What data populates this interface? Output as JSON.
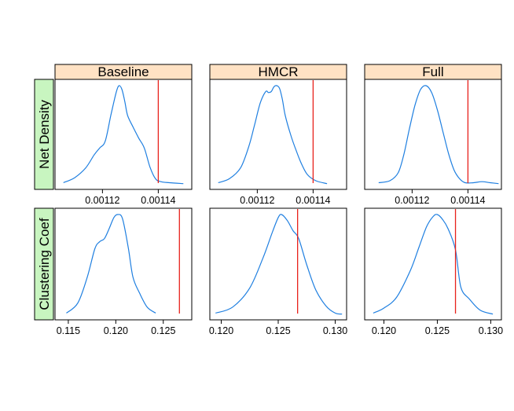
{
  "colors": {
    "strip_top": "#ffe2c4",
    "strip_left": "#c8f5c0",
    "density_line": "#1f7fe0",
    "reference_line": "#e8221c"
  },
  "chart_data": {
    "type": "line",
    "layout": "lattice 3 columns x 2 rows, density plots with reference line",
    "columns": [
      "Baseline",
      "HMCR",
      "Full"
    ],
    "rows": [
      "Net Density",
      "Clustering Coef"
    ],
    "row_data": [
      {
        "name": "Net Density",
        "xlim": [
          0.001103,
          0.001152
        ],
        "ticks": [
          {
            "v": 0.00112,
            "label": "0.00112"
          },
          {
            "v": 0.00114,
            "label": "0.00114"
          }
        ],
        "reference": 0.00114,
        "series": [
          {
            "name": "Baseline",
            "x": [
              0.001106,
              0.00111,
              0.001114,
              0.001117,
              0.001119,
              0.001121,
              0.001123,
              0.001125,
              0.001126,
              0.001127,
              0.001128,
              0.001129,
              0.001131,
              0.001133,
              0.001135,
              0.001137,
              0.001139,
              0.001141,
              0.001144,
              0.001149
            ],
            "y": [
              0.02,
              0.07,
              0.17,
              0.3,
              0.37,
              0.44,
              0.7,
              0.94,
              1.0,
              0.96,
              0.84,
              0.7,
              0.58,
              0.47,
              0.37,
              0.18,
              0.06,
              0.03,
              0.02,
              0.01
            ]
          },
          {
            "name": "HMCR",
            "x": [
              0.001106,
              0.00111,
              0.001114,
              0.001117,
              0.001119,
              0.001121,
              0.001123,
              0.001124,
              0.001125,
              0.001126,
              0.001127,
              0.001128,
              0.001129,
              0.00113,
              0.001132,
              0.001134,
              0.001136,
              0.001138,
              0.001141,
              0.001145
            ],
            "y": [
              0.02,
              0.06,
              0.17,
              0.39,
              0.6,
              0.82,
              0.94,
              0.93,
              0.94,
              0.99,
              1.0,
              0.97,
              0.86,
              0.7,
              0.5,
              0.34,
              0.2,
              0.1,
              0.04,
              0.01
            ]
          },
          {
            "name": "Full",
            "x": [
              0.001108,
              0.001112,
              0.001115,
              0.001117,
              0.001119,
              0.001121,
              0.001123,
              0.001125,
              0.001127,
              0.001129,
              0.001131,
              0.001133,
              0.001135,
              0.001137,
              0.001139,
              0.001142,
              0.001145,
              0.001148,
              0.001151
            ],
            "y": [
              0.02,
              0.04,
              0.12,
              0.3,
              0.56,
              0.8,
              0.96,
              1.0,
              0.93,
              0.76,
              0.54,
              0.32,
              0.15,
              0.06,
              0.02,
              0.02,
              0.03,
              0.02,
              0.01
            ]
          }
        ]
      },
      {
        "name": "Clustering Coef",
        "xlims": [
          [
            0.1136,
            0.128
          ],
          [
            0.119,
            0.131
          ],
          [
            0.1182,
            0.131
          ]
        ],
        "ticks_per_panel": [
          [
            {
              "v": 0.115,
              "label": "0.115"
            },
            {
              "v": 0.12,
              "label": "0.120"
            },
            {
              "v": 0.125,
              "label": "0.125"
            }
          ],
          [
            {
              "v": 0.12,
              "label": "0.120"
            },
            {
              "v": 0.125,
              "label": "0.125"
            },
            {
              "v": 0.13,
              "label": "0.130"
            }
          ],
          [
            {
              "v": 0.12,
              "label": "0.120"
            },
            {
              "v": 0.125,
              "label": "0.125"
            },
            {
              "v": 0.13,
              "label": "0.130"
            }
          ]
        ],
        "reference": 0.1267,
        "series": [
          {
            "name": "Baseline",
            "x": [
              0.1148,
              0.116,
              0.117,
              0.1178,
              0.1183,
              0.1188,
              0.1193,
              0.1198,
              0.1202,
              0.1207,
              0.1213,
              0.1218,
              0.1225,
              0.1233,
              0.1242
            ],
            "y": [
              0.02,
              0.12,
              0.38,
              0.66,
              0.73,
              0.76,
              0.86,
              0.97,
              1.0,
              0.96,
              0.68,
              0.38,
              0.22,
              0.08,
              0.02
            ]
          },
          {
            "name": "HMCR",
            "x": [
              0.1195,
              0.121,
              0.1225,
              0.1237,
              0.1245,
              0.125,
              0.1253,
              0.1258,
              0.1263,
              0.1268,
              0.1275,
              0.1283,
              0.1292,
              0.13,
              0.1306
            ],
            "y": [
              0.02,
              0.08,
              0.27,
              0.58,
              0.83,
              0.97,
              1.0,
              0.94,
              0.84,
              0.76,
              0.5,
              0.25,
              0.09,
              0.02,
              0.01
            ]
          },
          {
            "name": "Full",
            "x": [
              0.119,
              0.12,
              0.1212,
              0.1225,
              0.1233,
              0.124,
              0.1246,
              0.125,
              0.1255,
              0.126,
              0.1267,
              0.1272,
              0.128,
              0.129,
              0.1302
            ],
            "y": [
              0.02,
              0.07,
              0.18,
              0.45,
              0.68,
              0.88,
              0.98,
              1.0,
              0.95,
              0.86,
              0.65,
              0.28,
              0.16,
              0.05,
              0.01
            ]
          }
        ]
      }
    ]
  }
}
